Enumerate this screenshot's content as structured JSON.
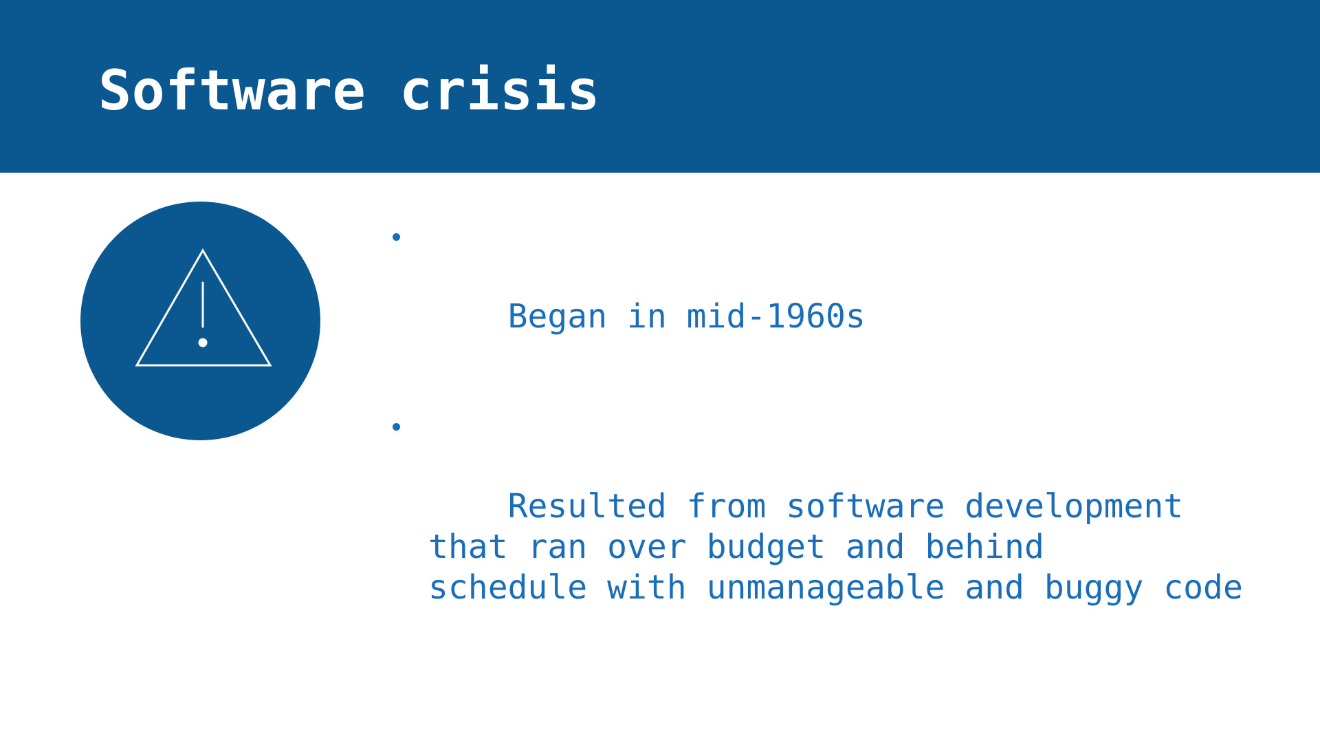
{
  "slide": {
    "title": "Software crisis",
    "icon": "warning-triangle-icon",
    "colors": {
      "header_background": "#0b5890",
      "title_text": "#ffffff",
      "bullet_text": "#1a6db8",
      "icon_circle": "#0b5890"
    },
    "bullets": [
      {
        "text": "Began in mid-1960s"
      },
      {
        "text": "Resulted from software development\nthat ran over budget and behind\nschedule with unmanageable and buggy code"
      }
    ]
  }
}
